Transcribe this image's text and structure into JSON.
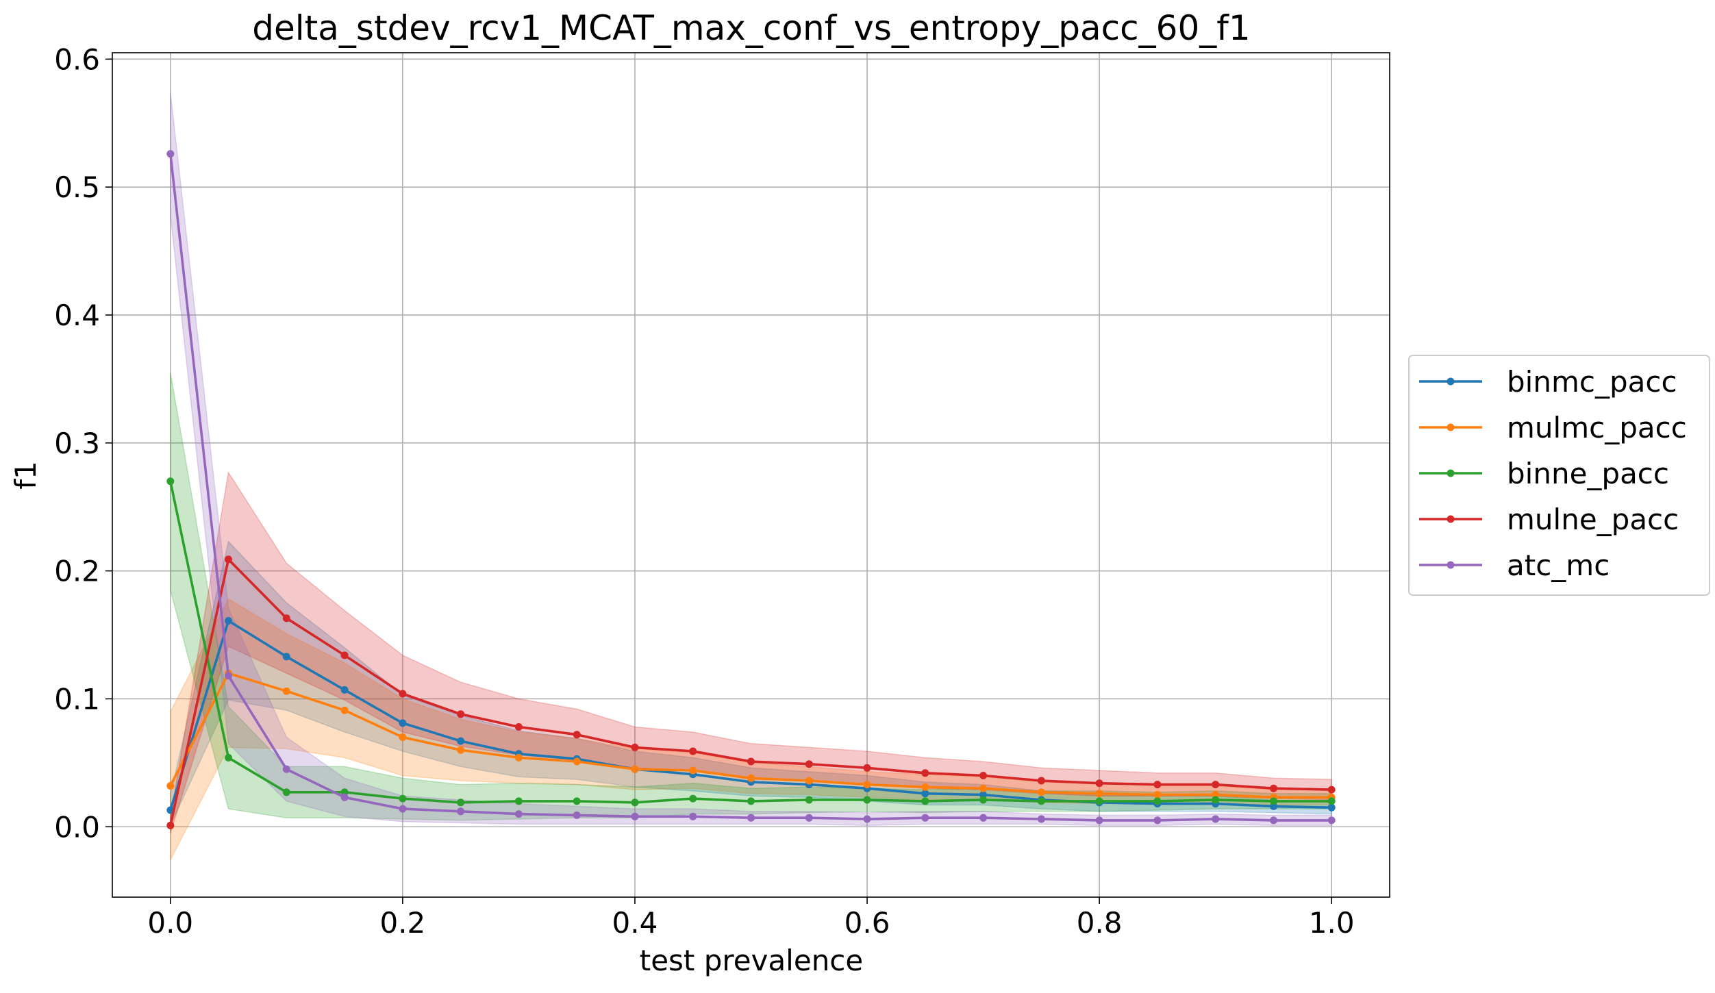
{
  "chart_data": {
    "type": "line",
    "title": "delta_stdev_rcv1_MCAT_max_conf_vs_entropy_pacc_60_f1",
    "xlabel": "test prevalence",
    "ylabel": "f1",
    "xlim": [
      -0.05,
      1.05
    ],
    "ylim": [
      -0.055,
      0.605
    ],
    "xticks": [
      0.0,
      0.2,
      0.4,
      0.6,
      0.8,
      1.0
    ],
    "xtick_labels": [
      "0.0",
      "0.2",
      "0.4",
      "0.6",
      "0.8",
      "1.0"
    ],
    "yticks": [
      0.0,
      0.1,
      0.2,
      0.3,
      0.4,
      0.5,
      0.6
    ],
    "ytick_labels": [
      "0.0",
      "0.1",
      "0.2",
      "0.3",
      "0.4",
      "0.5",
      "0.6"
    ],
    "grid": true,
    "legend_position": "outside right",
    "x": [
      0.0,
      0.05,
      0.1,
      0.15,
      0.2,
      0.25,
      0.3,
      0.35,
      0.4,
      0.45,
      0.5,
      0.55,
      0.6,
      0.65,
      0.7,
      0.75,
      0.8,
      0.85,
      0.9,
      0.95,
      1.0
    ],
    "series": [
      {
        "name": "binmc_pacc",
        "color": "#1f77b4",
        "values": [
          0.013,
          0.161,
          0.133,
          0.107,
          0.081,
          0.067,
          0.057,
          0.053,
          0.045,
          0.041,
          0.035,
          0.033,
          0.03,
          0.026,
          0.025,
          0.021,
          0.019,
          0.018,
          0.018,
          0.016,
          0.015
        ],
        "std": [
          0.012,
          0.062,
          0.042,
          0.033,
          0.022,
          0.02,
          0.018,
          0.016,
          0.014,
          0.013,
          0.011,
          0.01,
          0.01,
          0.009,
          0.008,
          0.007,
          0.007,
          0.006,
          0.006,
          0.005,
          0.005
        ]
      },
      {
        "name": "mulmc_pacc",
        "color": "#ff7f0e",
        "values": [
          0.032,
          0.12,
          0.106,
          0.091,
          0.07,
          0.06,
          0.054,
          0.051,
          0.045,
          0.044,
          0.038,
          0.036,
          0.033,
          0.031,
          0.03,
          0.027,
          0.026,
          0.025,
          0.025,
          0.023,
          0.023
        ],
        "std": [
          0.058,
          0.058,
          0.045,
          0.037,
          0.03,
          0.024,
          0.02,
          0.018,
          0.016,
          0.014,
          0.012,
          0.011,
          0.01,
          0.01,
          0.009,
          0.008,
          0.008,
          0.007,
          0.007,
          0.006,
          0.006
        ]
      },
      {
        "name": "binne_pacc",
        "color": "#2ca02c",
        "values": [
          0.27,
          0.054,
          0.027,
          0.027,
          0.022,
          0.019,
          0.02,
          0.02,
          0.019,
          0.022,
          0.02,
          0.021,
          0.021,
          0.02,
          0.021,
          0.02,
          0.02,
          0.02,
          0.021,
          0.02,
          0.02
        ],
        "std": [
          0.085,
          0.04,
          0.02,
          0.02,
          0.016,
          0.014,
          0.014,
          0.013,
          0.012,
          0.012,
          0.01,
          0.01,
          0.009,
          0.009,
          0.009,
          0.008,
          0.008,
          0.007,
          0.007,
          0.006,
          0.006
        ]
      },
      {
        "name": "mulne_pacc",
        "color": "#d62728",
        "values": [
          0.001,
          0.209,
          0.163,
          0.134,
          0.104,
          0.088,
          0.078,
          0.072,
          0.062,
          0.059,
          0.051,
          0.049,
          0.046,
          0.042,
          0.04,
          0.036,
          0.034,
          0.033,
          0.033,
          0.03,
          0.029
        ],
        "std": [
          0.006,
          0.068,
          0.043,
          0.035,
          0.03,
          0.025,
          0.022,
          0.02,
          0.016,
          0.015,
          0.014,
          0.013,
          0.013,
          0.012,
          0.011,
          0.01,
          0.01,
          0.009,
          0.009,
          0.008,
          0.008
        ]
      },
      {
        "name": "atc_mc",
        "color": "#9467bd",
        "values": [
          0.526,
          0.118,
          0.045,
          0.023,
          0.014,
          0.012,
          0.01,
          0.009,
          0.008,
          0.008,
          0.007,
          0.007,
          0.006,
          0.007,
          0.007,
          0.006,
          0.005,
          0.005,
          0.006,
          0.005,
          0.005
        ],
        "std": [
          0.048,
          0.053,
          0.025,
          0.015,
          0.01,
          0.009,
          0.008,
          0.007,
          0.006,
          0.006,
          0.005,
          0.005,
          0.005,
          0.005,
          0.005,
          0.004,
          0.004,
          0.004,
          0.004,
          0.004,
          0.004
        ]
      }
    ]
  }
}
